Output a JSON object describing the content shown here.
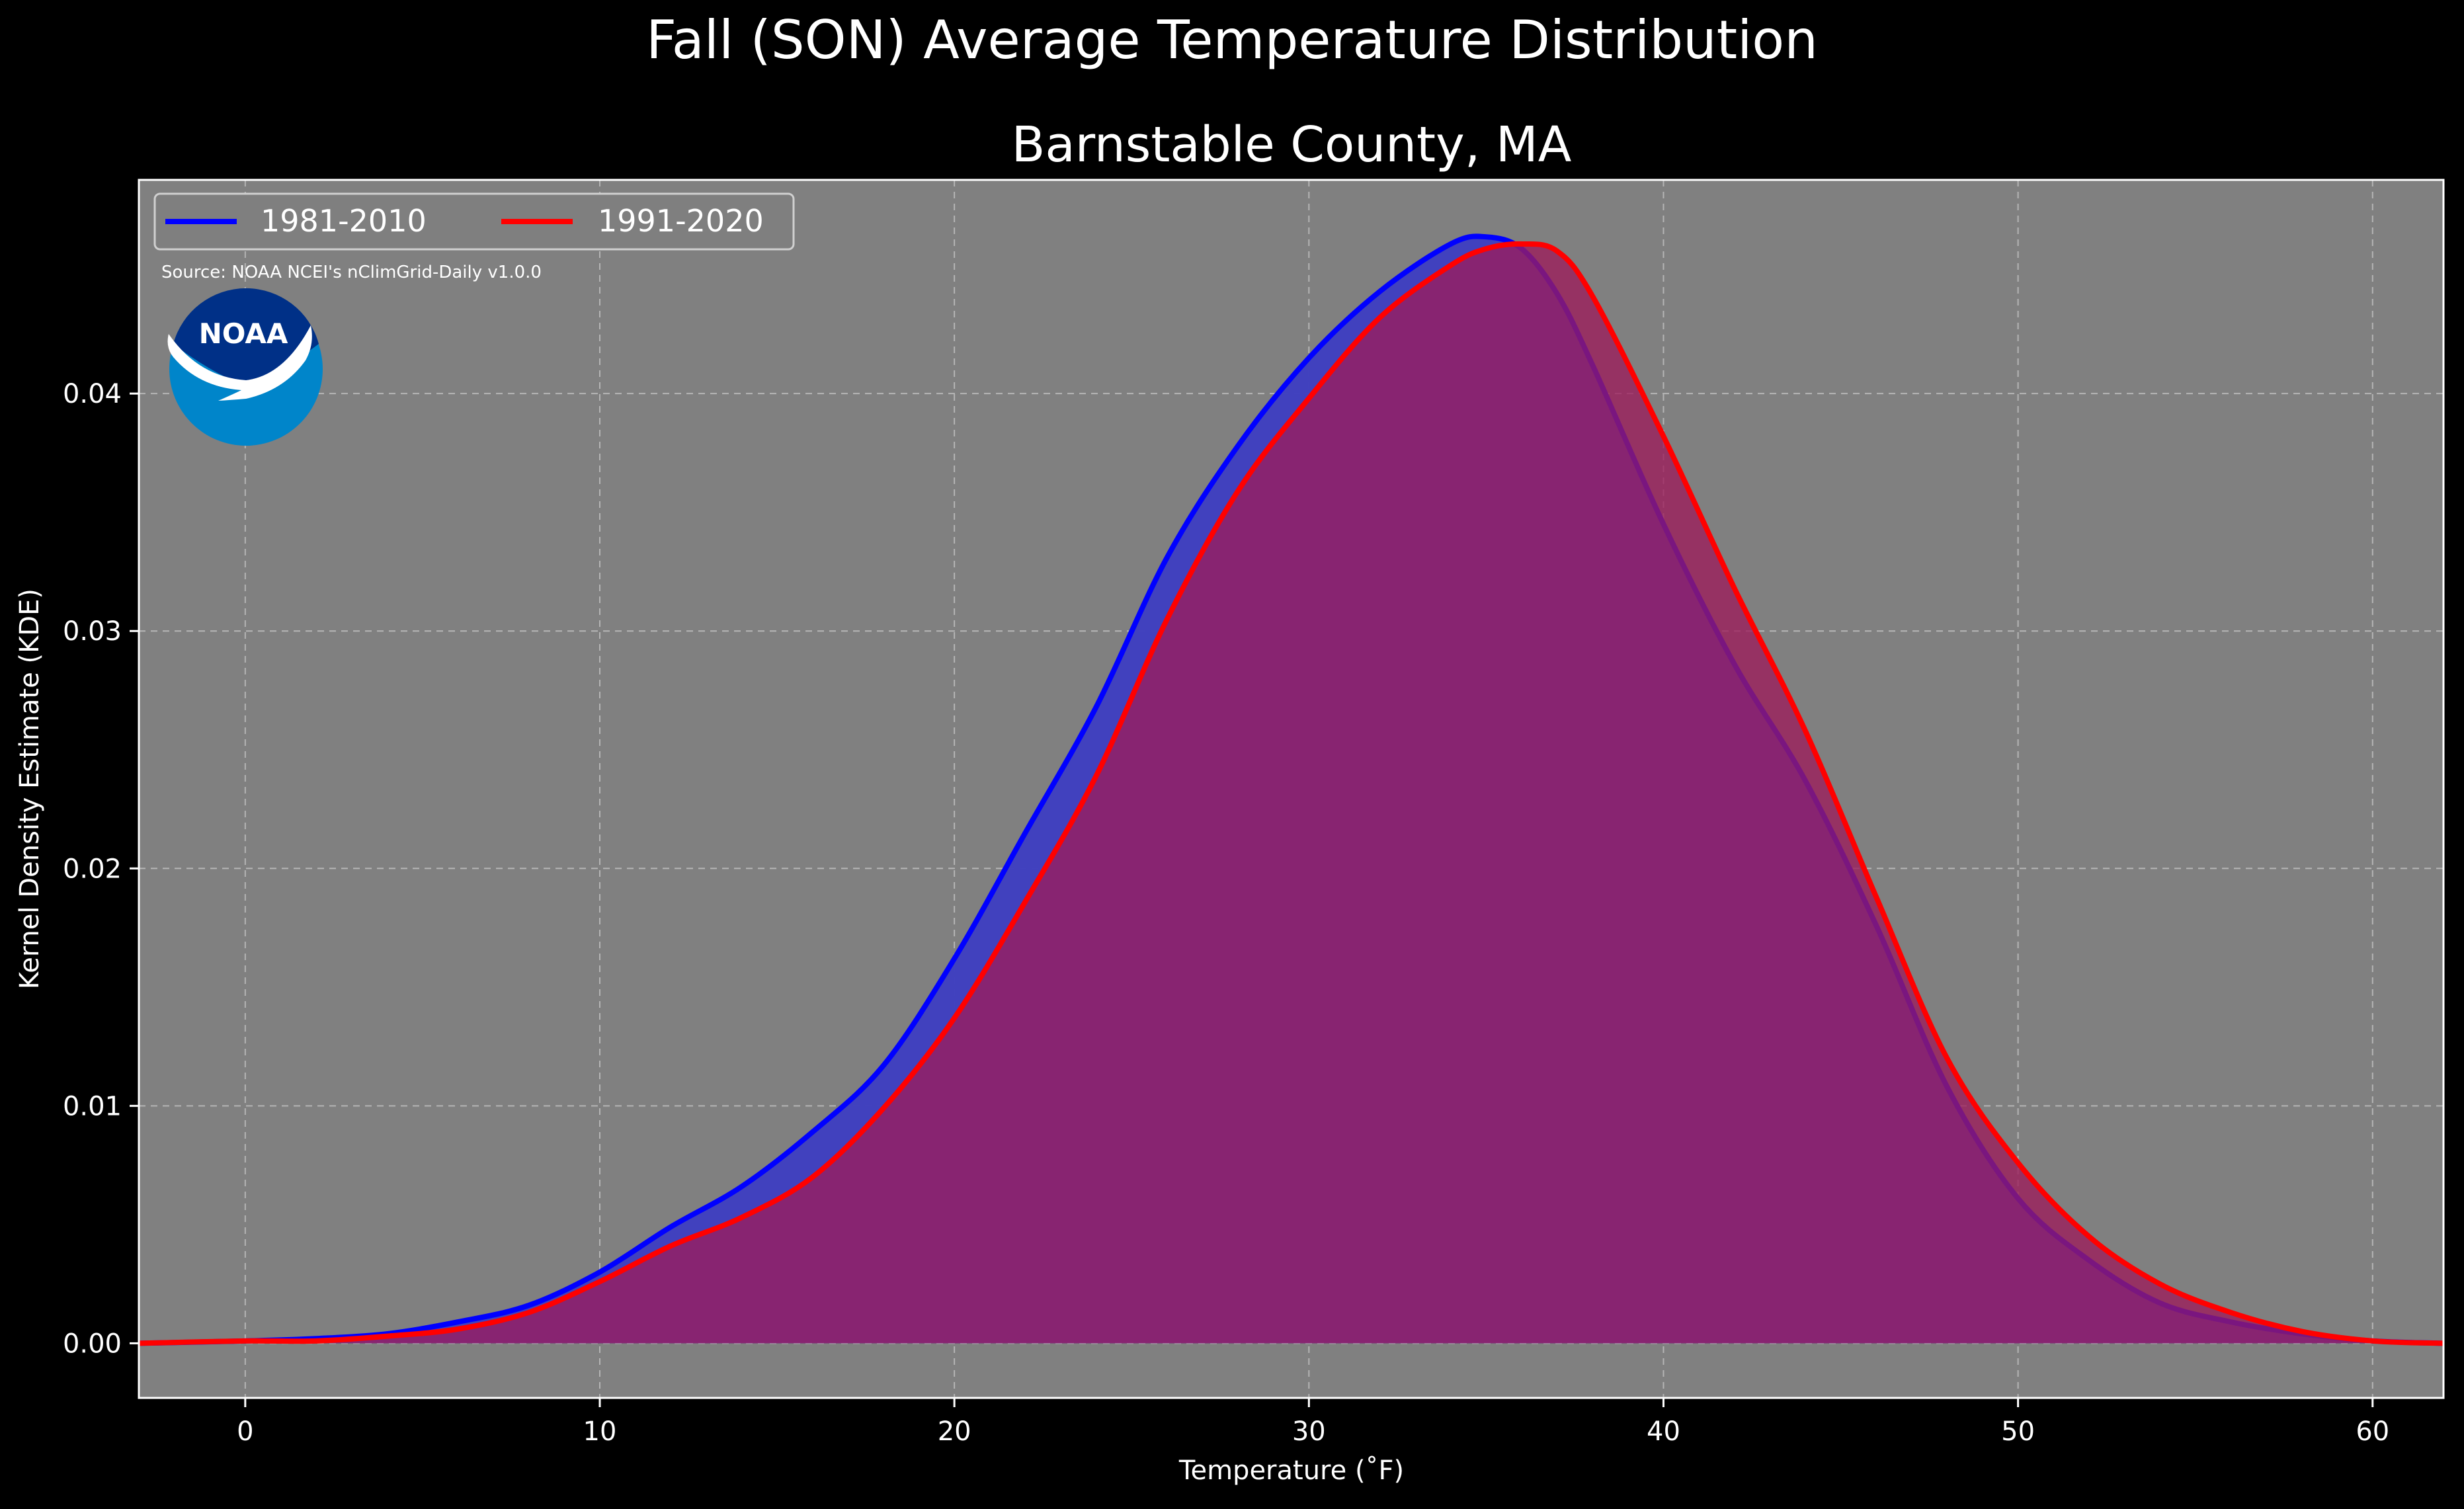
{
  "chart_data": {
    "type": "area",
    "title": "Fall (SON) Average Temperature Distribution",
    "subtitle": "Barnstable County, MA",
    "xlabel": "Temperature (˚F)",
    "ylabel": "Kernel Density Estimate (KDE)",
    "xlim": [
      -3,
      62
    ],
    "ylim": [
      -0.0023,
      0.049
    ],
    "xticks": [
      0,
      10,
      20,
      30,
      40,
      50,
      60
    ],
    "xtick_labels": [
      "0",
      "10",
      "20",
      "30",
      "40",
      "50",
      "60"
    ],
    "yticks": [
      0.0,
      0.01,
      0.02,
      0.03,
      0.04
    ],
    "ytick_labels": [
      "0.00",
      "0.01",
      "0.02",
      "0.03",
      "0.04"
    ],
    "grid": true,
    "legend_placement": "top-left",
    "source_note": "Source: NOAA NCEI's nClimGrid-Daily v1.0.0",
    "logo_text": "NOAA",
    "background_color": "#000000",
    "plot_bg_color": "#808080",
    "series": [
      {
        "name": "1981-2010",
        "color": "#0000ff",
        "fill": "#3f3fbf",
        "x": [
          -3,
          0,
          2,
          4,
          6,
          8,
          10,
          12,
          14,
          16,
          18,
          20,
          22,
          24,
          26,
          28,
          30,
          32,
          34,
          35,
          36,
          37,
          38,
          40,
          42,
          44,
          46,
          48,
          50,
          52,
          54,
          56,
          58,
          60,
          62
        ],
        "values": [
          0.0,
          0.0001,
          0.0002,
          0.0004,
          0.0009,
          0.0016,
          0.003,
          0.0049,
          0.0066,
          0.0089,
          0.0117,
          0.0162,
          0.0215,
          0.0268,
          0.0331,
          0.0378,
          0.0415,
          0.0443,
          0.0463,
          0.0466,
          0.0461,
          0.0442,
          0.0412,
          0.0345,
          0.0286,
          0.0237,
          0.0176,
          0.0108,
          0.0061,
          0.0035,
          0.0017,
          0.0009,
          0.0004,
          0.0001,
          0.0
        ]
      },
      {
        "name": "1991-2020",
        "color": "#ff0000",
        "fill": "#9c1c5b",
        "x": [
          -3,
          0,
          2,
          4,
          6,
          8,
          10,
          12,
          14,
          16,
          18,
          20,
          22,
          24,
          26,
          28,
          30,
          32,
          34,
          35,
          36,
          37,
          38,
          40,
          42,
          44,
          46,
          48,
          50,
          52,
          54,
          56,
          58,
          60,
          62
        ],
        "values": [
          0.0,
          0.0001,
          0.0001,
          0.0003,
          0.0006,
          0.0013,
          0.0026,
          0.0041,
          0.0053,
          0.007,
          0.0099,
          0.0137,
          0.0186,
          0.0239,
          0.0305,
          0.0359,
          0.0398,
          0.0432,
          0.0454,
          0.0461,
          0.0463,
          0.046,
          0.0441,
          0.0382,
          0.0318,
          0.0258,
          0.0188,
          0.012,
          0.0076,
          0.0045,
          0.0025,
          0.0013,
          0.0005,
          0.0001,
          0.0
        ]
      }
    ]
  }
}
